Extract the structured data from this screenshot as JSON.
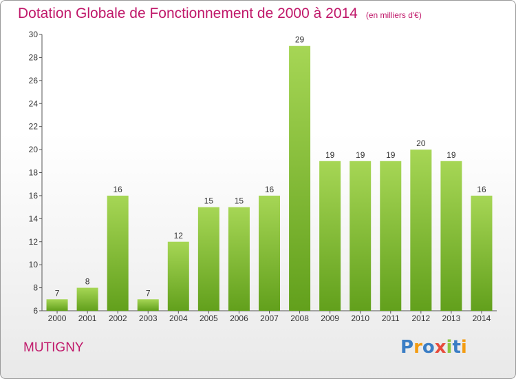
{
  "title": "Dotation Globale de Fonctionnement de 2000 à 2014",
  "subtitle": "(en milliers d'€)",
  "commune": "MUTIGNY",
  "logo": {
    "text": "Proxiti",
    "colors": [
      "#3b7ec5",
      "#f39c12",
      "#3b7ec5",
      "#e74c3c",
      "#8cc63f",
      "#3b7ec5",
      "#f39c12"
    ]
  },
  "colors": {
    "bar": "#8cc63f",
    "bar_light": "#a8d95a",
    "bar_dark": "#5f9a1e",
    "title": "#c0186a",
    "axis": "#555555"
  },
  "chart_data": {
    "type": "bar",
    "categories": [
      "2000",
      "2001",
      "2002",
      "2003",
      "2004",
      "2005",
      "2006",
      "2007",
      "2008",
      "2009",
      "2010",
      "2011",
      "2012",
      "2013",
      "2014"
    ],
    "values": [
      7,
      8,
      16,
      7,
      12,
      15,
      15,
      16,
      29,
      19,
      19,
      19,
      20,
      19,
      16
    ],
    "ylim": [
      6,
      30
    ],
    "yticks": [
      6,
      8,
      10,
      12,
      14,
      16,
      18,
      20,
      22,
      24,
      26,
      28,
      30
    ],
    "grid": false,
    "data_labels": true
  }
}
